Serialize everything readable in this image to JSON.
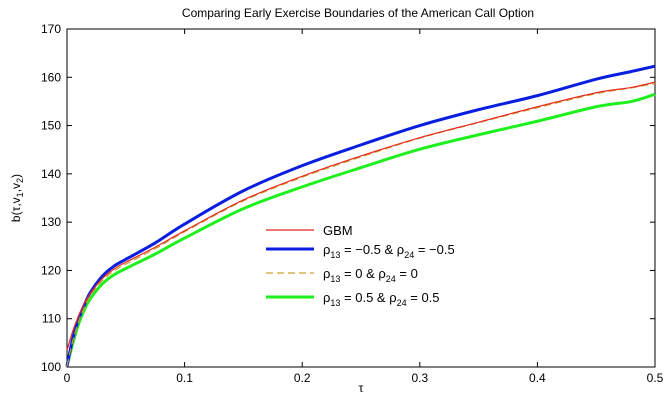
{
  "chart_data": {
    "type": "line",
    "title": "Comparing Early Exercise Boundaries of the American Call Option",
    "xlabel": "τ",
    "ylabel": {
      "base": "b(τ,v",
      "s1": "1",
      "mid": ",v",
      "s2": "2",
      "end": ")"
    },
    "xlim": [
      0,
      0.5
    ],
    "ylim": [
      100,
      170
    ],
    "xticks": [
      0,
      0.1,
      0.2,
      0.3,
      0.4,
      0.5
    ],
    "xtick_labels": [
      "0",
      "0.1",
      "0.2",
      "0.3",
      "0.4",
      "0.5"
    ],
    "yticks": [
      100,
      110,
      120,
      130,
      140,
      150,
      160,
      170
    ],
    "ytick_labels": [
      "100",
      "110",
      "120",
      "130",
      "140",
      "150",
      "160",
      "170"
    ],
    "grid": false,
    "legend_position": "center",
    "x": [
      0,
      0.005,
      0.01,
      0.015,
      0.02,
      0.03,
      0.04,
      0.05,
      0.075,
      0.1,
      0.15,
      0.2,
      0.25,
      0.3,
      0.35,
      0.4,
      0.45,
      0.48,
      0.5
    ],
    "series": [
      {
        "name": "GBM",
        "legend": {
          "kind": "plain",
          "text": "GBM"
        },
        "color": "#e8281f",
        "style": "solid",
        "width": 1.2,
        "values": [
          103.5,
          107.5,
          110.7,
          113.3,
          115.3,
          118.3,
          120.3,
          121.7,
          124.8,
          128.2,
          134.6,
          139.5,
          143.7,
          147.5,
          150.7,
          153.9,
          156.8,
          157.9,
          159.0
        ]
      },
      {
        "name": "ρ13 = −0.5 & ρ24 = −0.5",
        "legend": {
          "kind": "rho",
          "r13": "−0.5",
          "r24": "−0.5"
        },
        "color": "#0a1ee0",
        "style": "solid",
        "width": 3,
        "values": [
          100.2,
          106.0,
          110.0,
          113.0,
          115.5,
          118.8,
          120.9,
          122.3,
          125.7,
          129.6,
          136.5,
          141.7,
          146.0,
          150.0,
          153.3,
          156.2,
          159.6,
          161.2,
          162.3
        ]
      },
      {
        "name": "ρ13 = 0 & ρ24 = 0",
        "legend": {
          "kind": "rho",
          "r13": "0",
          "r24": "0"
        },
        "color": "#c9a227",
        "style": "dashed",
        "width": 1.2,
        "values": [
          100.2,
          105.5,
          109.5,
          112.5,
          114.8,
          117.9,
          119.9,
          121.3,
          124.5,
          128.0,
          134.4,
          139.3,
          143.5,
          147.4,
          150.6,
          153.7,
          156.6,
          157.8,
          158.7
        ]
      },
      {
        "name": "ρ13 = 0.5 & ρ24 = 0.5",
        "legend": {
          "kind": "rho",
          "r13": "0.5",
          "r24": "0.5"
        },
        "color": "#1ef01e",
        "style": "solid",
        "width": 3,
        "values": [
          100.2,
          105.0,
          109.0,
          112.0,
          114.2,
          117.2,
          119.1,
          120.4,
          123.4,
          126.7,
          132.8,
          137.3,
          141.3,
          145.1,
          148.1,
          150.9,
          153.9,
          155.0,
          156.5
        ]
      }
    ]
  }
}
